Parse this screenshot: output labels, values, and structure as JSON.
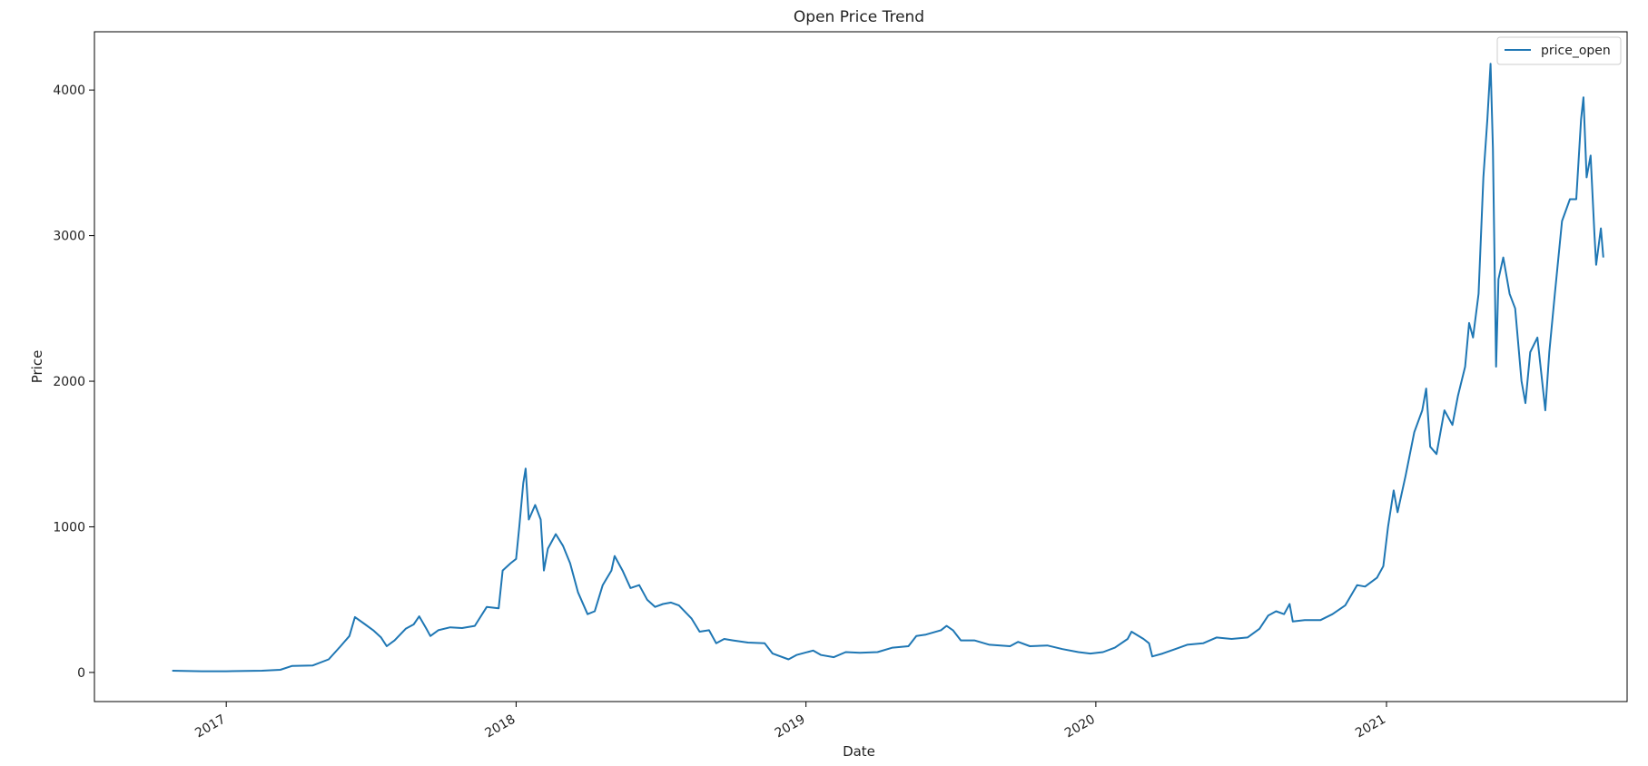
{
  "chart_data": {
    "type": "line",
    "title": "Open Price Trend",
    "xlabel": "Date",
    "ylabel": "Price",
    "xlim": [
      "2016-07-19",
      "2021-10-31"
    ],
    "ylim": [
      -200,
      4400
    ],
    "x_ticks": [
      {
        "label": "2017",
        "date": "2017-01-01"
      },
      {
        "label": "2018",
        "date": "2018-01-01"
      },
      {
        "label": "2019",
        "date": "2019-01-01"
      },
      {
        "label": "2020",
        "date": "2020-01-01"
      },
      {
        "label": "2021",
        "date": "2021-01-01"
      }
    ],
    "y_ticks": [
      0,
      1000,
      2000,
      3000,
      4000
    ],
    "legend": {
      "position": "top-right",
      "entries": [
        "price_open"
      ]
    },
    "grid": false,
    "series": [
      {
        "name": "price_open",
        "color": "#1f77b4",
        "points": [
          [
            "2016-10-25",
            12
          ],
          [
            "2016-12-01",
            8
          ],
          [
            "2017-01-01",
            8
          ],
          [
            "2017-02-15",
            12
          ],
          [
            "2017-03-10",
            18
          ],
          [
            "2017-03-25",
            45
          ],
          [
            "2017-04-20",
            48
          ],
          [
            "2017-05-10",
            90
          ],
          [
            "2017-05-25",
            180
          ],
          [
            "2017-06-05",
            250
          ],
          [
            "2017-06-12",
            380
          ],
          [
            "2017-06-25",
            330
          ],
          [
            "2017-07-05",
            290
          ],
          [
            "2017-07-15",
            240
          ],
          [
            "2017-07-22",
            180
          ],
          [
            "2017-08-01",
            220
          ],
          [
            "2017-08-15",
            300
          ],
          [
            "2017-08-25",
            330
          ],
          [
            "2017-09-01",
            385
          ],
          [
            "2017-09-10",
            300
          ],
          [
            "2017-09-15",
            250
          ],
          [
            "2017-09-25",
            290
          ],
          [
            "2017-10-10",
            310
          ],
          [
            "2017-10-25",
            305
          ],
          [
            "2017-11-10",
            320
          ],
          [
            "2017-11-25",
            450
          ],
          [
            "2017-12-10",
            440
          ],
          [
            "2017-12-15",
            700
          ],
          [
            "2017-12-25",
            750
          ],
          [
            "2018-01-01",
            780
          ],
          [
            "2018-01-05",
            1000
          ],
          [
            "2018-01-10",
            1300
          ],
          [
            "2018-01-13",
            1400
          ],
          [
            "2018-01-17",
            1050
          ],
          [
            "2018-01-25",
            1150
          ],
          [
            "2018-02-01",
            1050
          ],
          [
            "2018-02-05",
            700
          ],
          [
            "2018-02-10",
            850
          ],
          [
            "2018-02-20",
            950
          ],
          [
            "2018-03-01",
            870
          ],
          [
            "2018-03-10",
            750
          ],
          [
            "2018-03-20",
            550
          ],
          [
            "2018-04-01",
            400
          ],
          [
            "2018-04-10",
            420
          ],
          [
            "2018-04-20",
            600
          ],
          [
            "2018-05-01",
            700
          ],
          [
            "2018-05-05",
            800
          ],
          [
            "2018-05-15",
            700
          ],
          [
            "2018-05-25",
            580
          ],
          [
            "2018-06-05",
            600
          ],
          [
            "2018-06-15",
            500
          ],
          [
            "2018-06-25",
            450
          ],
          [
            "2018-07-05",
            470
          ],
          [
            "2018-07-15",
            480
          ],
          [
            "2018-07-25",
            460
          ],
          [
            "2018-08-10",
            370
          ],
          [
            "2018-08-20",
            280
          ],
          [
            "2018-09-01",
            290
          ],
          [
            "2018-09-10",
            200
          ],
          [
            "2018-09-20",
            230
          ],
          [
            "2018-10-01",
            220
          ],
          [
            "2018-10-20",
            205
          ],
          [
            "2018-11-10",
            200
          ],
          [
            "2018-11-20",
            130
          ],
          [
            "2018-12-10",
            90
          ],
          [
            "2018-12-20",
            120
          ],
          [
            "2019-01-10",
            150
          ],
          [
            "2019-01-20",
            120
          ],
          [
            "2019-02-05",
            105
          ],
          [
            "2019-02-20",
            140
          ],
          [
            "2019-03-10",
            135
          ],
          [
            "2019-04-01",
            140
          ],
          [
            "2019-04-20",
            170
          ],
          [
            "2019-05-10",
            180
          ],
          [
            "2019-05-20",
            250
          ],
          [
            "2019-06-01",
            260
          ],
          [
            "2019-06-20",
            290
          ],
          [
            "2019-06-27",
            320
          ],
          [
            "2019-07-05",
            290
          ],
          [
            "2019-07-15",
            220
          ],
          [
            "2019-08-01",
            220
          ],
          [
            "2019-08-20",
            190
          ],
          [
            "2019-09-15",
            180
          ],
          [
            "2019-09-25",
            210
          ],
          [
            "2019-10-10",
            180
          ],
          [
            "2019-11-01",
            185
          ],
          [
            "2019-11-20",
            160
          ],
          [
            "2019-12-10",
            140
          ],
          [
            "2019-12-25",
            130
          ],
          [
            "2020-01-10",
            140
          ],
          [
            "2020-01-25",
            170
          ],
          [
            "2020-02-10",
            230
          ],
          [
            "2020-02-15",
            280
          ],
          [
            "2020-03-01",
            230
          ],
          [
            "2020-03-08",
            200
          ],
          [
            "2020-03-12",
            110
          ],
          [
            "2020-03-25",
            130
          ],
          [
            "2020-04-10",
            160
          ],
          [
            "2020-04-25",
            190
          ],
          [
            "2020-05-15",
            200
          ],
          [
            "2020-06-01",
            240
          ],
          [
            "2020-06-20",
            230
          ],
          [
            "2020-07-10",
            240
          ],
          [
            "2020-07-25",
            300
          ],
          [
            "2020-08-05",
            390
          ],
          [
            "2020-08-15",
            420
          ],
          [
            "2020-08-25",
            400
          ],
          [
            "2020-09-01",
            470
          ],
          [
            "2020-09-05",
            350
          ],
          [
            "2020-09-20",
            360
          ],
          [
            "2020-10-10",
            360
          ],
          [
            "2020-10-25",
            400
          ],
          [
            "2020-11-10",
            460
          ],
          [
            "2020-11-25",
            600
          ],
          [
            "2020-12-05",
            590
          ],
          [
            "2020-12-20",
            650
          ],
          [
            "2020-12-28",
            730
          ],
          [
            "2021-01-03",
            1000
          ],
          [
            "2021-01-10",
            1250
          ],
          [
            "2021-01-15",
            1100
          ],
          [
            "2021-01-25",
            1350
          ],
          [
            "2021-02-05",
            1650
          ],
          [
            "2021-02-15",
            1800
          ],
          [
            "2021-02-20",
            1950
          ],
          [
            "2021-02-25",
            1550
          ],
          [
            "2021-03-05",
            1500
          ],
          [
            "2021-03-15",
            1800
          ],
          [
            "2021-03-25",
            1700
          ],
          [
            "2021-04-01",
            1900
          ],
          [
            "2021-04-10",
            2100
          ],
          [
            "2021-04-15",
            2400
          ],
          [
            "2021-04-20",
            2300
          ],
          [
            "2021-04-27",
            2600
          ],
          [
            "2021-05-03",
            3400
          ],
          [
            "2021-05-08",
            3800
          ],
          [
            "2021-05-12",
            4180
          ],
          [
            "2021-05-15",
            3600
          ],
          [
            "2021-05-19",
            2100
          ],
          [
            "2021-05-22",
            2700
          ],
          [
            "2021-05-28",
            2850
          ],
          [
            "2021-06-05",
            2600
          ],
          [
            "2021-06-12",
            2500
          ],
          [
            "2021-06-20",
            2000
          ],
          [
            "2021-06-25",
            1850
          ],
          [
            "2021-07-01",
            2200
          ],
          [
            "2021-07-10",
            2300
          ],
          [
            "2021-07-20",
            1800
          ],
          [
            "2021-07-25",
            2200
          ],
          [
            "2021-08-01",
            2600
          ],
          [
            "2021-08-10",
            3100
          ],
          [
            "2021-08-20",
            3250
          ],
          [
            "2021-08-28",
            3250
          ],
          [
            "2021-09-03",
            3800
          ],
          [
            "2021-09-06",
            3950
          ],
          [
            "2021-09-10",
            3400
          ],
          [
            "2021-09-15",
            3550
          ],
          [
            "2021-09-20",
            3000
          ],
          [
            "2021-09-22",
            2800
          ],
          [
            "2021-09-28",
            3050
          ],
          [
            "2021-10-01",
            2850
          ]
        ]
      }
    ]
  }
}
